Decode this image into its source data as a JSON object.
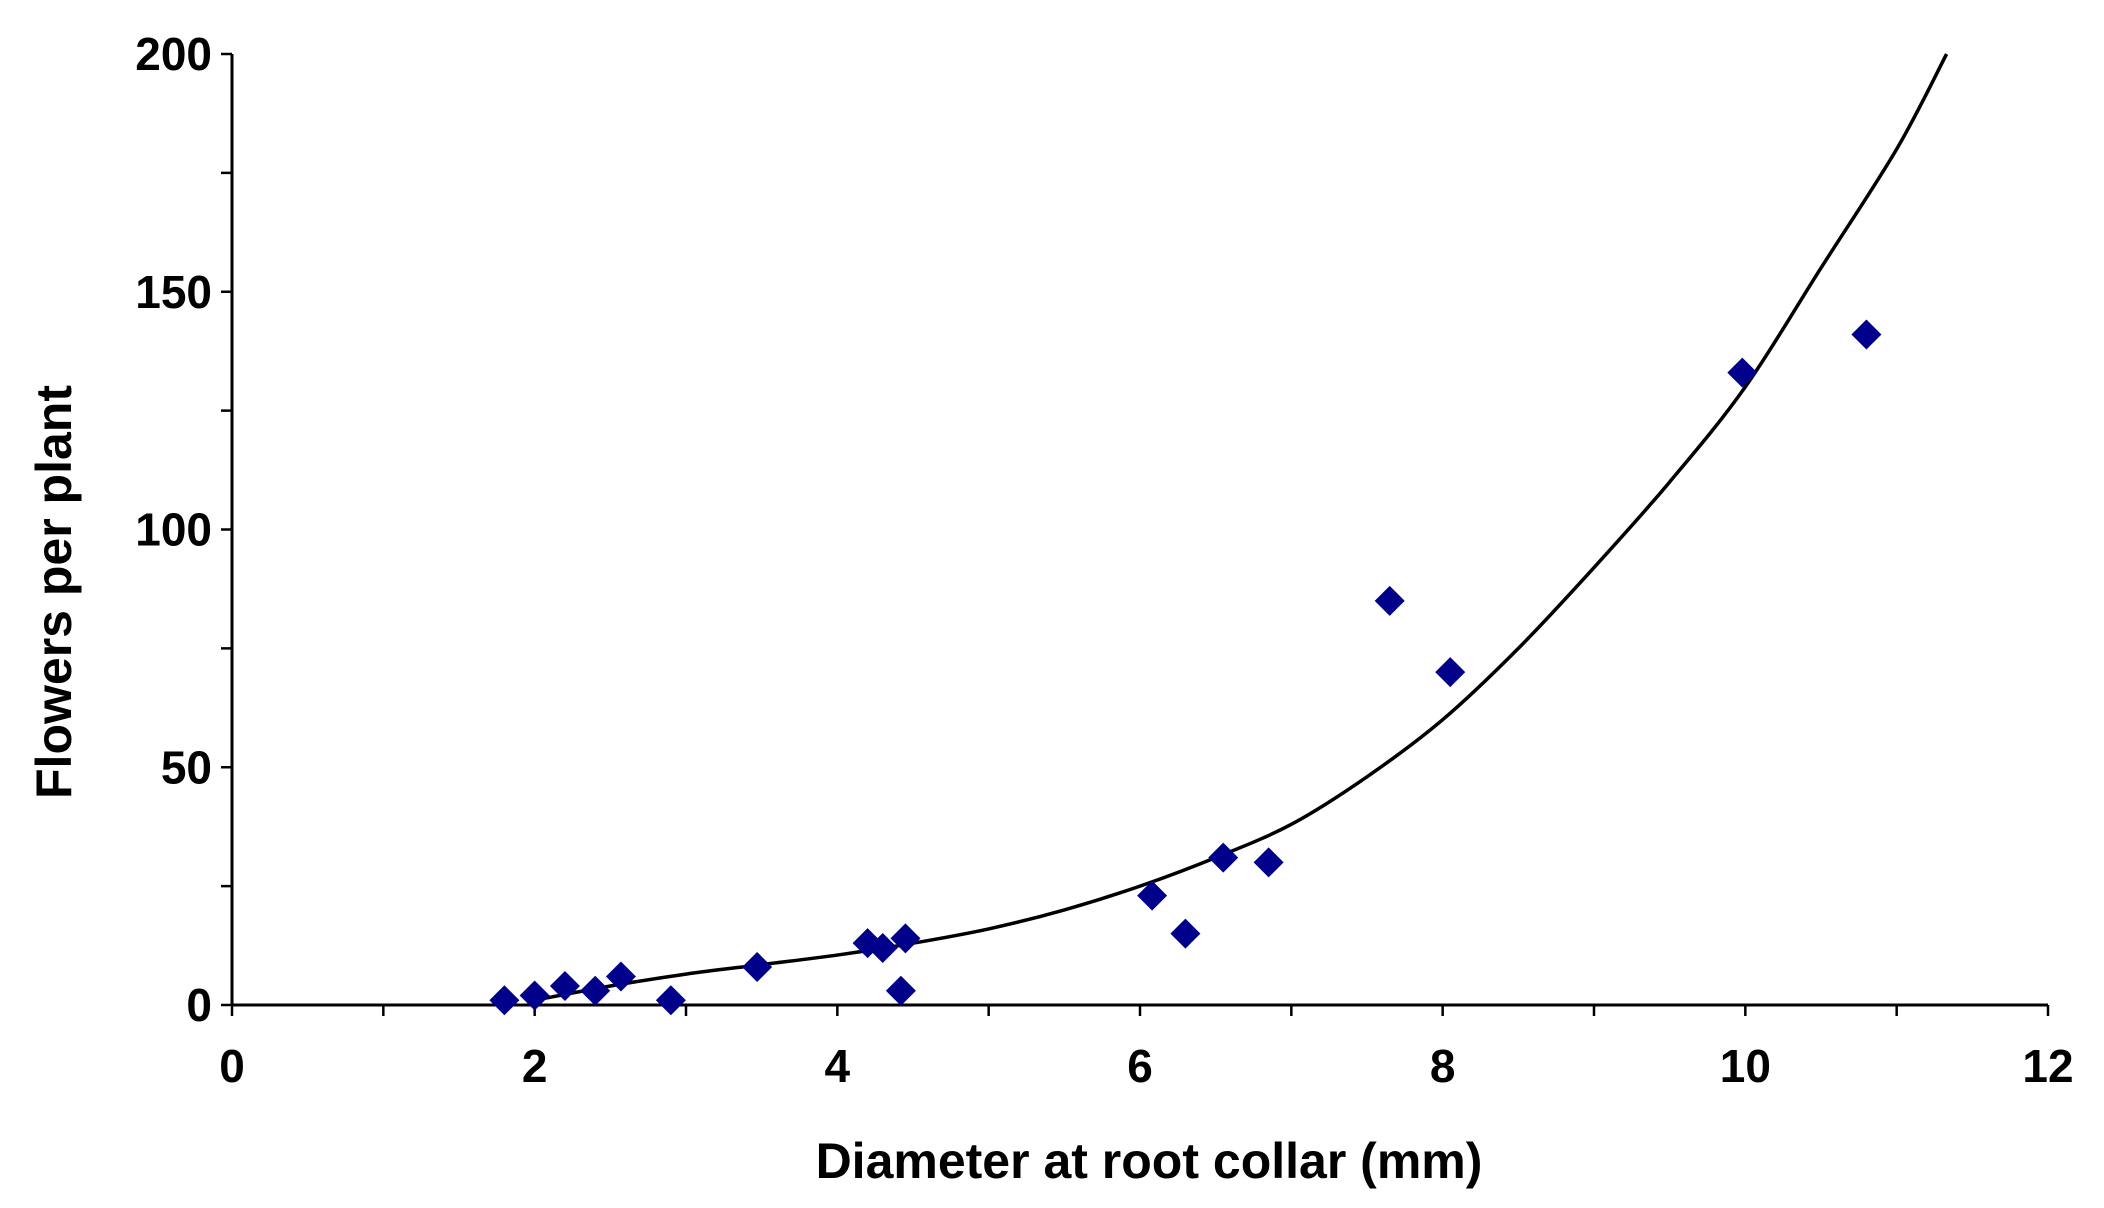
{
  "chart_data": {
    "type": "scatter",
    "title": "",
    "xlabel": "Diameter at root collar (mm)",
    "ylabel": "Flowers per plant",
    "xlim": [
      0,
      12
    ],
    "ylim": [
      0,
      200
    ],
    "x_ticks": [
      0,
      2,
      4,
      6,
      8,
      10,
      12
    ],
    "y_ticks": [
      0,
      50,
      100,
      150,
      200
    ],
    "x_minor_step": 1,
    "y_minor_step": 25,
    "grid": false,
    "legend": "none",
    "marker": "diamond",
    "marker_color": "#00008B",
    "trendline_color": "#000000",
    "series": [
      {
        "points": [
          {
            "x": 1.8,
            "y": 1
          },
          {
            "x": 2.0,
            "y": 2
          },
          {
            "x": 2.2,
            "y": 4
          },
          {
            "x": 2.4,
            "y": 3
          },
          {
            "x": 2.57,
            "y": 6
          },
          {
            "x": 2.9,
            "y": 1
          },
          {
            "x": 3.47,
            "y": 8
          },
          {
            "x": 4.2,
            "y": 13
          },
          {
            "x": 4.3,
            "y": 12
          },
          {
            "x": 4.42,
            "y": 3
          },
          {
            "x": 4.45,
            "y": 14
          },
          {
            "x": 6.08,
            "y": 23
          },
          {
            "x": 6.3,
            "y": 15
          },
          {
            "x": 6.55,
            "y": 31
          },
          {
            "x": 6.85,
            "y": 30
          },
          {
            "x": 7.65,
            "y": 85
          },
          {
            "x": 8.05,
            "y": 70
          },
          {
            "x": 9.98,
            "y": 133
          },
          {
            "x": 10.8,
            "y": 141
          }
        ]
      }
    ],
    "trendline": {
      "x": [
        2.0,
        2.5,
        3.0,
        3.5,
        4.0,
        4.5,
        5.0,
        5.5,
        6.0,
        6.5,
        7.0,
        7.5,
        8.0,
        8.5,
        9.0,
        9.5,
        10.0,
        10.5,
        11.0,
        11.33
      ],
      "y": [
        1,
        4,
        6.5,
        8.5,
        10.5,
        13,
        16,
        20,
        25,
        31,
        38,
        48,
        60,
        75,
        92,
        110,
        130,
        155,
        180,
        200
      ]
    }
  }
}
